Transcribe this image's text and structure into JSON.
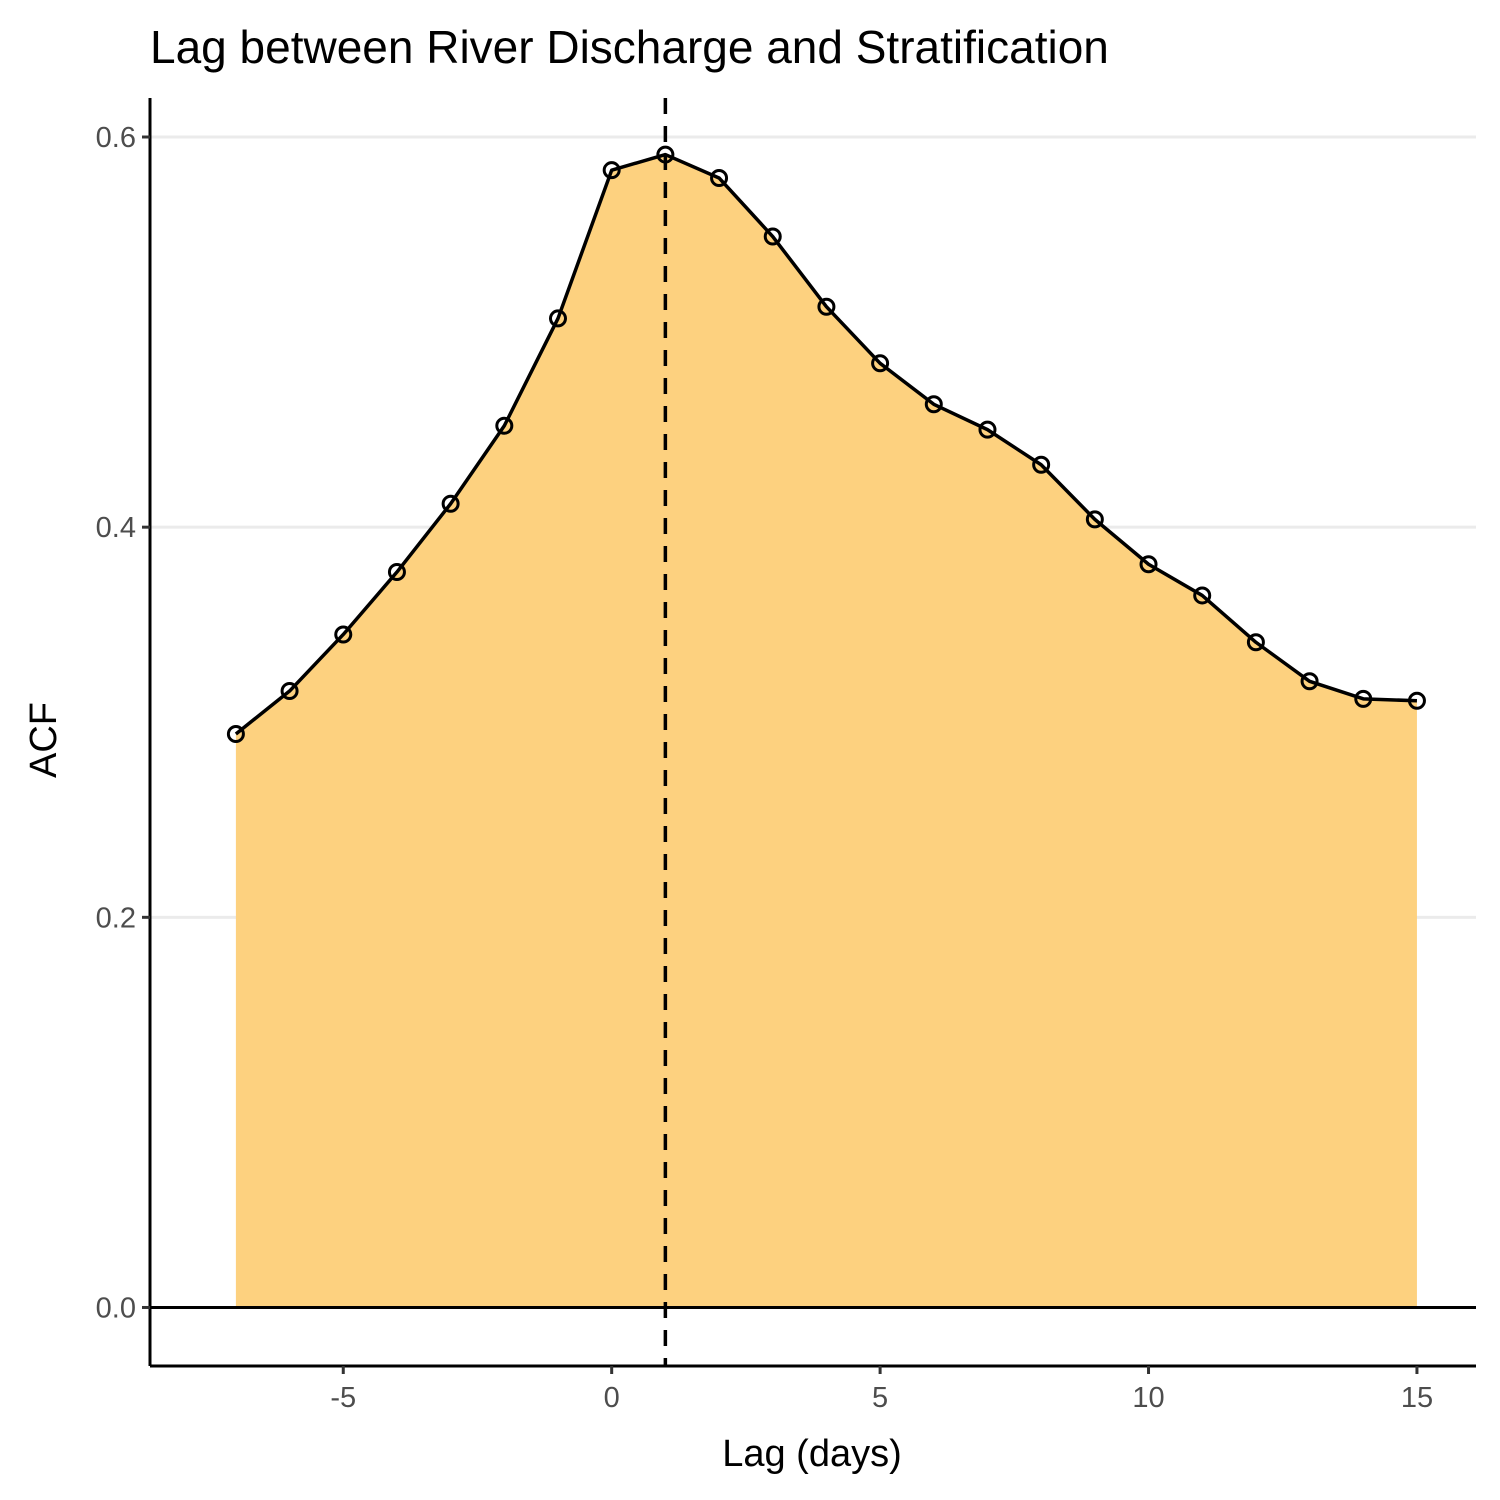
{
  "chart_data": {
    "type": "area",
    "title": "Lag between River Discharge and Stratification",
    "xlabel": "Lag (days)",
    "ylabel": "ACF",
    "x": [
      -7,
      -6,
      -5,
      -4,
      -3,
      -2,
      -1,
      0,
      1,
      2,
      3,
      4,
      5,
      6,
      7,
      8,
      9,
      10,
      11,
      12,
      13,
      14,
      15
    ],
    "y": [
      0.294,
      0.316,
      0.345,
      0.377,
      0.412,
      0.452,
      0.507,
      0.583,
      0.591,
      0.579,
      0.549,
      0.513,
      0.484,
      0.463,
      0.45,
      0.432,
      0.404,
      0.381,
      0.365,
      0.341,
      0.321,
      0.312,
      0.311
    ],
    "xlim": [
      -8.6,
      16.1
    ],
    "ylim": [
      -0.03,
      0.62
    ],
    "xticks": [
      -5,
      0,
      5,
      10,
      15
    ],
    "xtick_labels": [
      "-5",
      "0",
      "5",
      "10",
      "15"
    ],
    "yticks": [
      0.0,
      0.2,
      0.4,
      0.6
    ],
    "ytick_labels": [
      "0.0",
      "0.2",
      "0.4",
      "0.6"
    ],
    "reference_line": {
      "x": 1,
      "style": "dashed"
    },
    "baseline": 0,
    "fill_color": "#fdd17f",
    "line_color": "#000000",
    "grid": "horizontal major",
    "legend": "none"
  }
}
